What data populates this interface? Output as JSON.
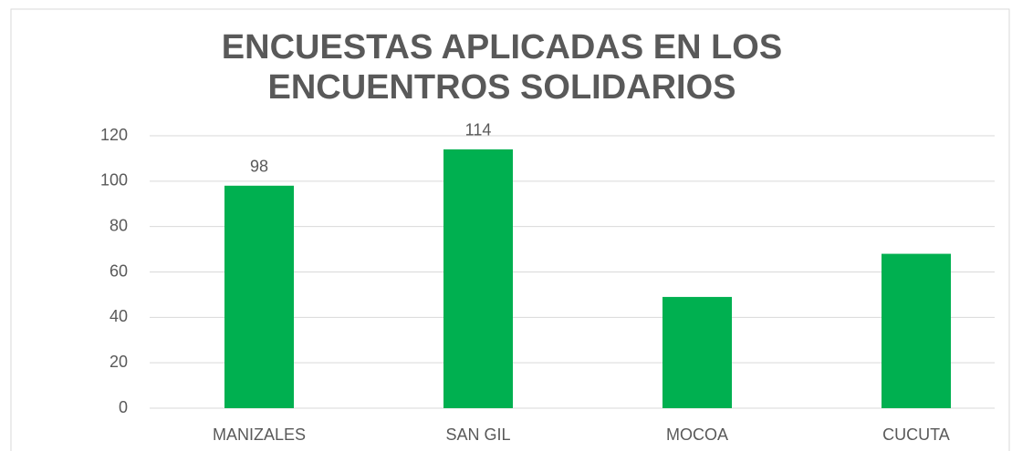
{
  "chart_data": {
    "type": "bar",
    "title": "ENCUESTAS APLICADAS EN LOS ENCUENTROS SOLIDARIOS",
    "categories": [
      "MANIZALES",
      "SAN GIL",
      "MOCOA",
      "CUCUTA"
    ],
    "values": [
      98,
      114,
      49,
      68
    ],
    "value_labels": [
      "98",
      "114",
      null,
      null
    ],
    "color": "#00b050",
    "ylim": [
      0,
      120
    ],
    "yticks": [
      0,
      20,
      40,
      60,
      80,
      100,
      120
    ],
    "grid": true
  }
}
